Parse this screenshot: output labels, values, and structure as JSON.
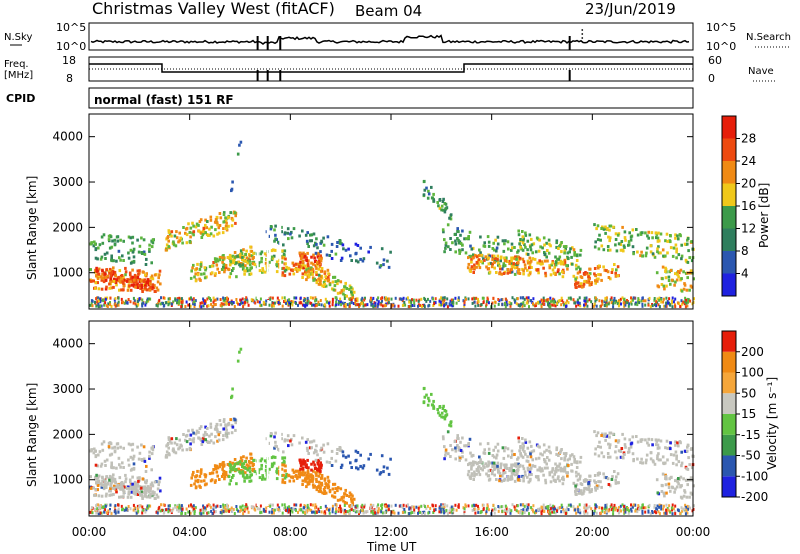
{
  "header": {
    "title": "Christmas Valley West (fitACF)",
    "beam": "Beam 04",
    "date": "23/Jun/2019"
  },
  "strip1": {
    "left_label": "N.Sky",
    "left_top": "10^5",
    "left_bottom": "10^0",
    "right_label": "N.Search",
    "right_top": "10^5",
    "right_bottom": "10^0"
  },
  "strip2": {
    "left_label_1": "Freq.",
    "left_label_2": "[MHz]",
    "left_top": "18",
    "left_bottom": "8",
    "right_label": "Nave",
    "right_top": "60",
    "right_bottom": "0"
  },
  "cpid": {
    "label": "CPID",
    "value": "normal (fast) 151 RF"
  },
  "colors": {
    "power": [
      "#1f22e0",
      "#2b57b0",
      "#2f7e5e",
      "#3c9a4a",
      "#5fb63c",
      "#f0c81a",
      "#f08a14",
      "#ee4a10",
      "#e61e0a"
    ],
    "velocity": [
      "#e61e0a",
      "#f08a14",
      "#f5a63a",
      "#c8c8c0",
      "#c8c8c0",
      "#62c442",
      "#3c9a4a",
      "#2b57b0",
      "#1f22e0"
    ],
    "ground_scatter": "#c0c0b8"
  },
  "chart_data": [
    {
      "type": "heatmap",
      "panel": "power",
      "ylabel": "Slant Range [km]",
      "yticks": [
        "1000",
        "2000",
        "3000",
        "4000"
      ],
      "ylim": [
        200,
        4500
      ],
      "xlim": [
        0,
        24
      ],
      "colorbar": {
        "label": "Power [dB]",
        "ticks": [
          "4",
          "8",
          "12",
          "16",
          "20",
          "24",
          "28"
        ],
        "range": [
          0,
          32
        ]
      }
    },
    {
      "type": "heatmap",
      "panel": "velocity",
      "ylabel": "Slant Range [km]",
      "yticks": [
        "1000",
        "2000",
        "3000",
        "4000"
      ],
      "ylim": [
        200,
        4500
      ],
      "xlim": [
        0,
        24
      ],
      "xlabel": "Time UT",
      "xticks": [
        "00:00",
        "04:00",
        "08:00",
        "12:00",
        "16:00",
        "20:00",
        "00:00"
      ],
      "colorbar": {
        "label": "Velocity [m s⁻¹]",
        "ticks": [
          "200",
          "100",
          "50",
          "15",
          "-15",
          "-50",
          "-100",
          "-200"
        ]
      }
    }
  ]
}
